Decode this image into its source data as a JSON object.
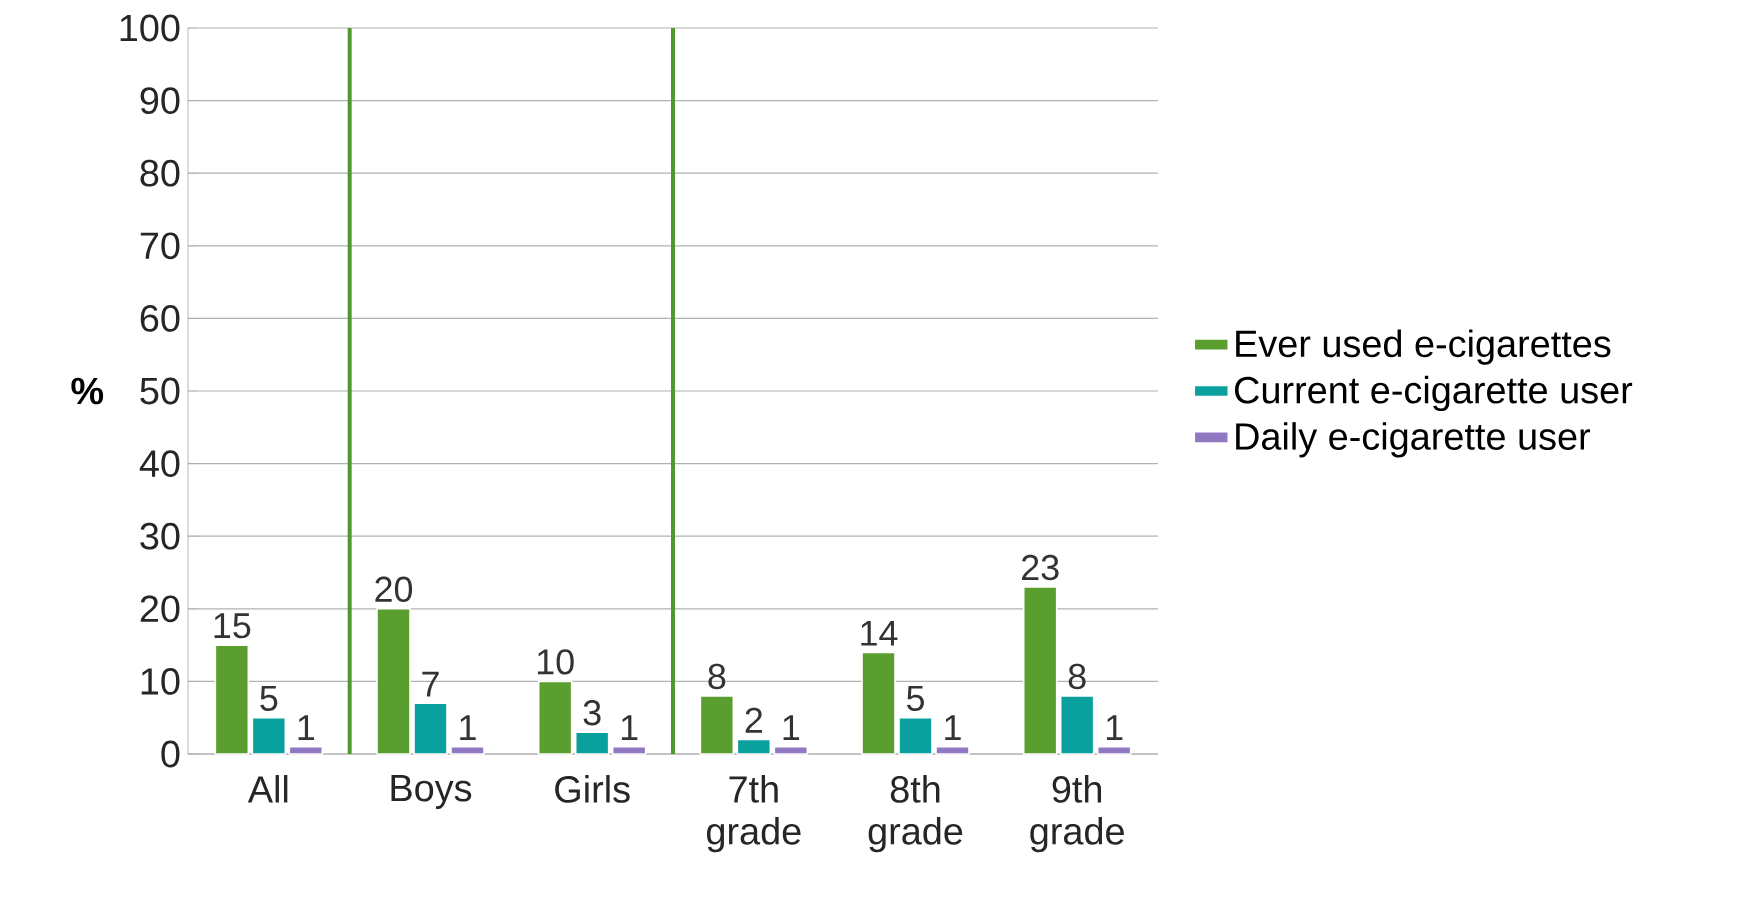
{
  "chart_data": {
    "type": "bar",
    "ylabel": "%",
    "categories": [
      "All",
      "Boys",
      "Girls",
      "7th grade",
      "8th grade",
      "9th grade"
    ],
    "series": [
      {
        "name": "Ever used e-cigarettes",
        "color": "#5a9e2f",
        "values": [
          15,
          20,
          10,
          8,
          14,
          23
        ]
      },
      {
        "name": "Current e-cigarette user",
        "color": "#0aa09e",
        "values": [
          5,
          7,
          3,
          2,
          5,
          8
        ]
      },
      {
        "name": "Daily e-cigarette user",
        "color": "#9078c2",
        "values": [
          1,
          1,
          1,
          1,
          1,
          1
        ]
      }
    ],
    "ylim": [
      0,
      100
    ],
    "yticks": [
      0,
      10,
      20,
      30,
      40,
      50,
      60,
      70,
      80,
      90,
      100
    ],
    "grid": "y",
    "legend": "right",
    "data_labels": true
  }
}
